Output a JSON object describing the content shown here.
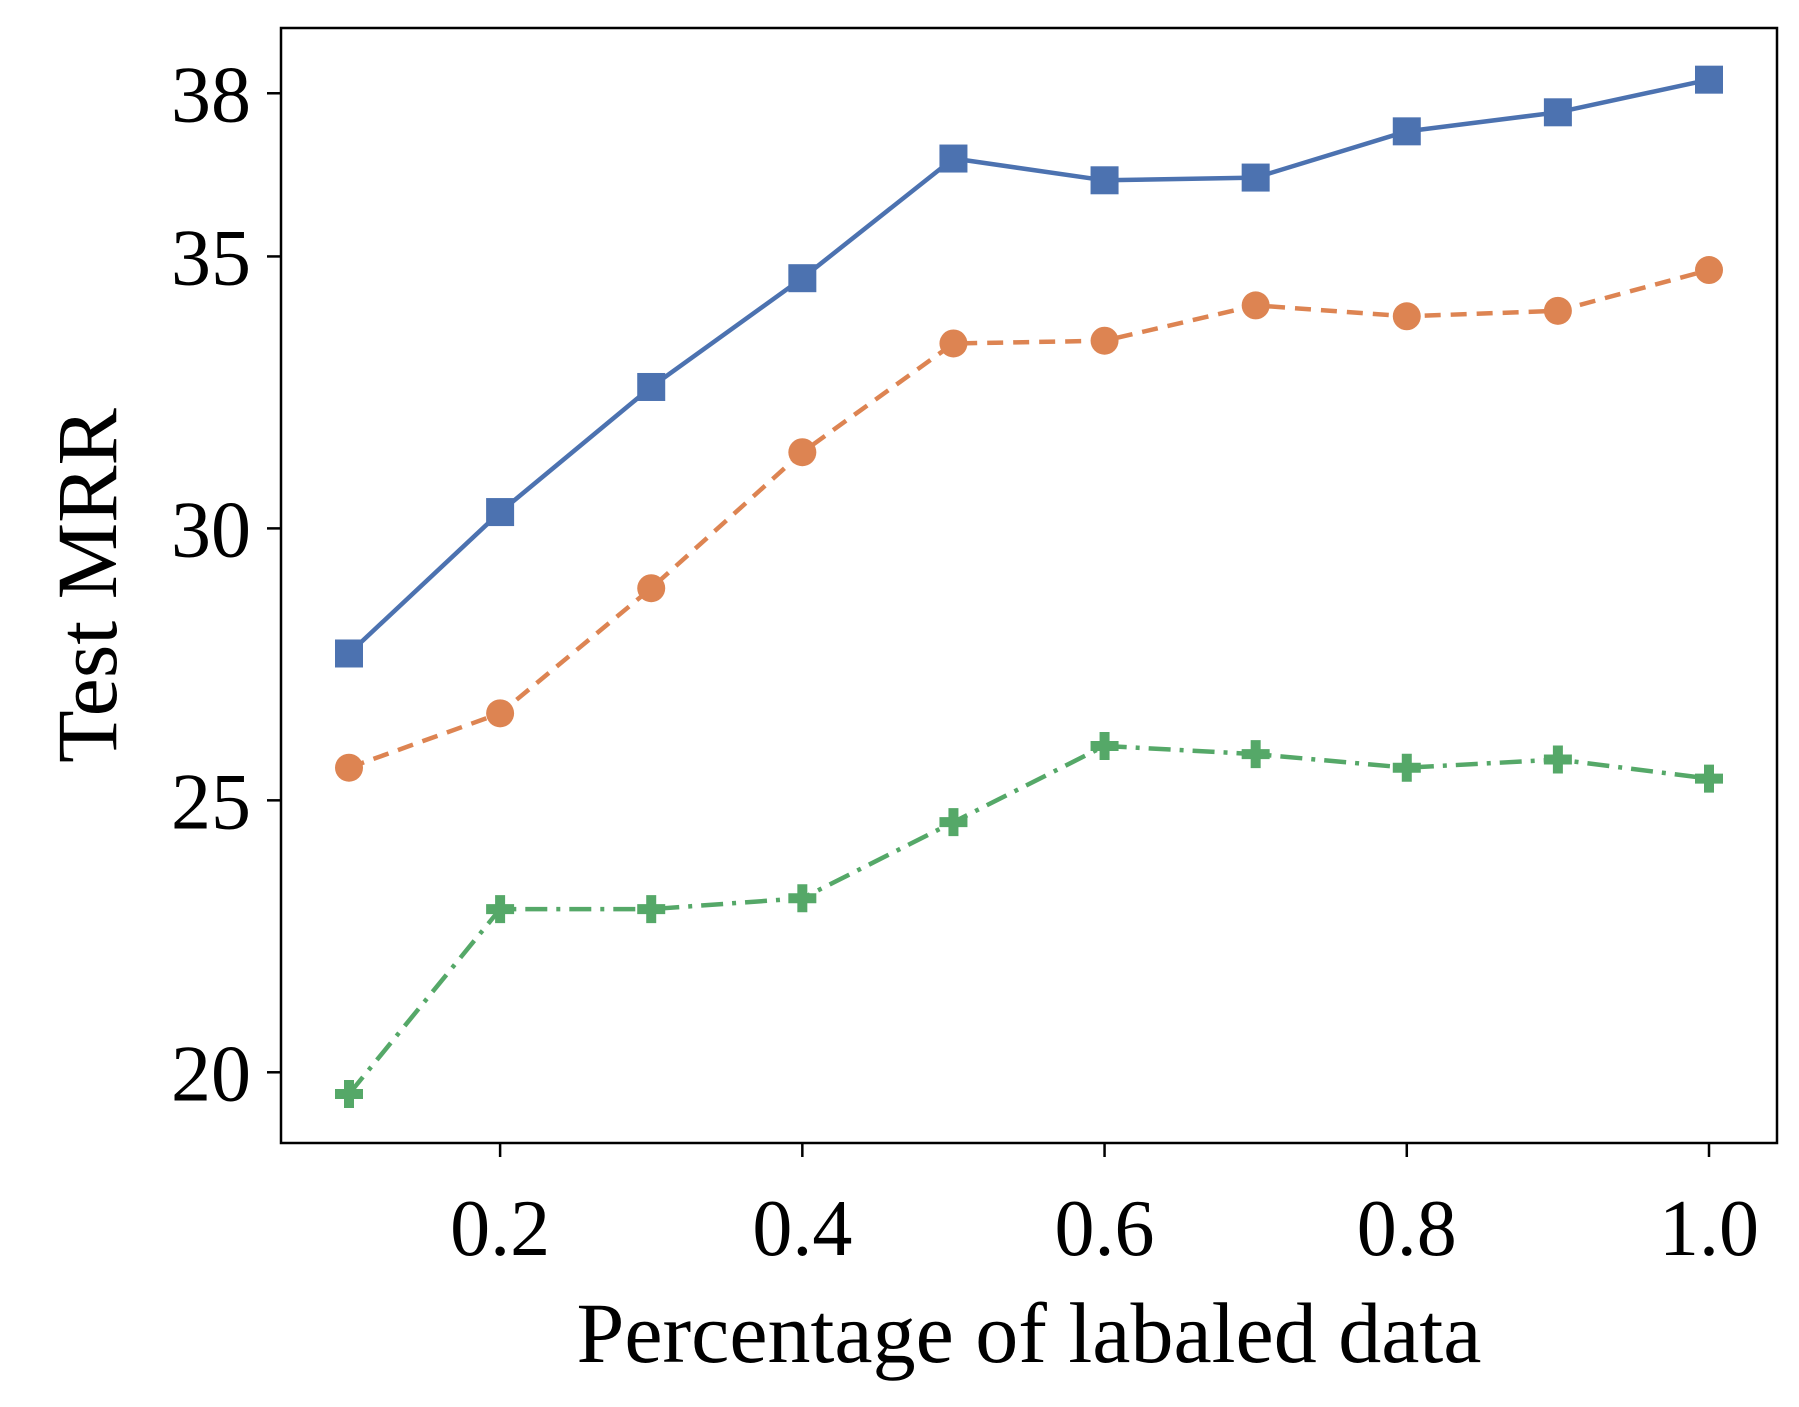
{
  "chart_data": {
    "type": "line",
    "title": "",
    "xlabel": "Percentage of labaled data",
    "ylabel": "Test MRR",
    "xlim": [
      0.055,
      1.045
    ],
    "ylim": [
      18.7,
      39.2
    ],
    "xticks": [
      0.2,
      0.4,
      0.6,
      0.8,
      1.0
    ],
    "xtick_labels": [
      "0.2",
      "0.4",
      "0.6",
      "0.8",
      "1.0"
    ],
    "yticks": [
      20,
      25,
      30,
      35,
      38
    ],
    "ytick_labels": [
      "20",
      "25",
      "30",
      "35",
      "38"
    ],
    "grid": false,
    "legend": false,
    "x": [
      0.1,
      0.2,
      0.3,
      0.4,
      0.5,
      0.6,
      0.7,
      0.8,
      0.9,
      1.0
    ],
    "series": [
      {
        "color": "#4C72B0",
        "marker": "square",
        "linestyle": "solid",
        "values": [
          27.7,
          30.3,
          32.6,
          34.6,
          36.8,
          36.4,
          36.45,
          37.3,
          37.65,
          38.25
        ]
      },
      {
        "color": "#DD8452",
        "marker": "circle",
        "linestyle": "dashed",
        "values": [
          25.6,
          26.6,
          28.9,
          31.4,
          33.4,
          33.45,
          34.1,
          33.9,
          34.0,
          34.75
        ]
      },
      {
        "color": "#55A868",
        "marker": "plus",
        "linestyle": "dashdot",
        "values": [
          19.6,
          23.0,
          23.0,
          23.2,
          24.6,
          26.0,
          25.85,
          25.6,
          25.75,
          25.4
        ]
      }
    ]
  }
}
